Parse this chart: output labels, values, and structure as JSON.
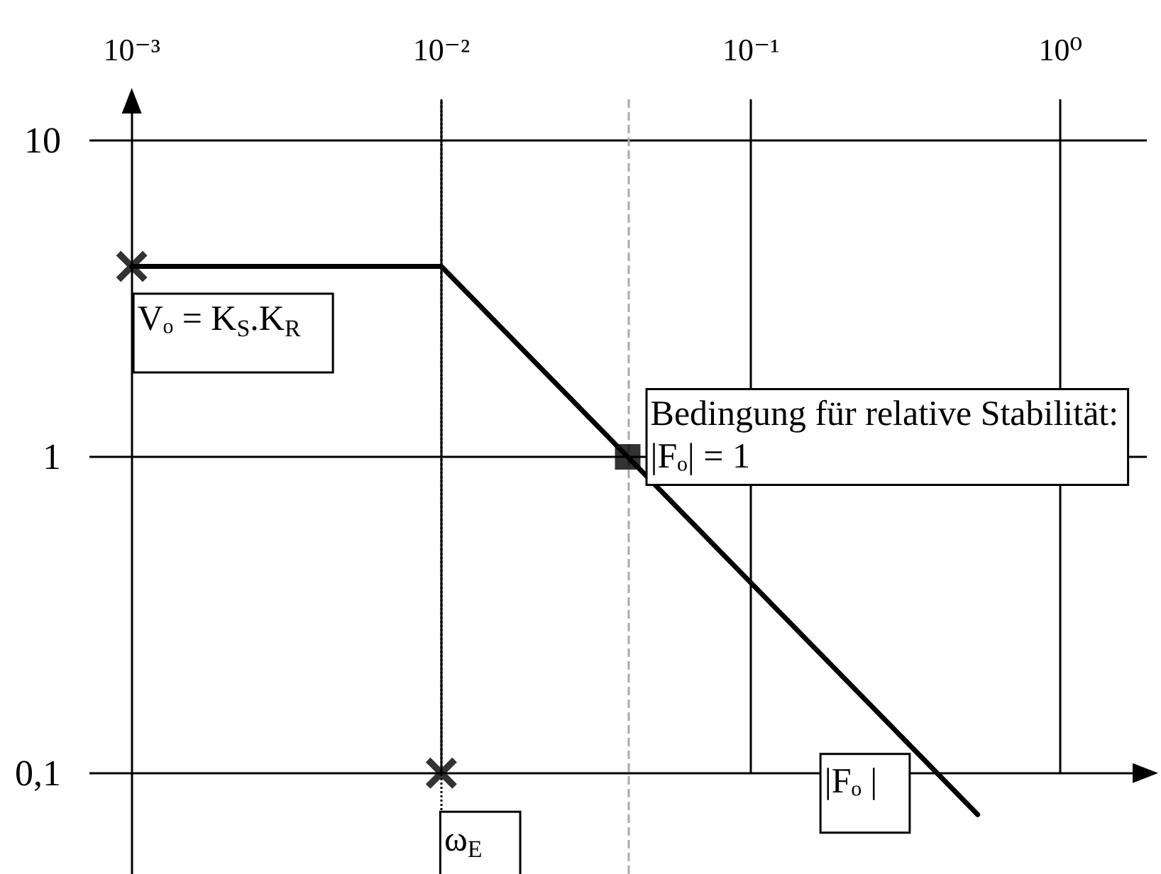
{
  "chart_data": {
    "type": "line",
    "xlim": [
      0.00073,
      1.9
    ],
    "ylim": [
      0.048,
      13.5
    ],
    "log": "xy",
    "xticks": [
      {
        "value": 0.001,
        "label": "10⁻³"
      },
      {
        "value": 0.01,
        "label": "10⁻²"
      },
      {
        "value": 0.1,
        "label": "10⁻¹"
      },
      {
        "value": 1,
        "label": "10⁰"
      }
    ],
    "yticks": [
      {
        "value": 0.1,
        "label": "0,1"
      },
      1,
      10
    ],
    "grid": true,
    "series": [
      {
        "name": "|Fₒ |",
        "x": [
          0.001,
          0.01,
          0.54
        ],
        "values": [
          4,
          4,
          0.074
        ],
        "color": "#000000",
        "marker": "none"
      },
      {
        "type": "scatter",
        "x": [
          0.001,
          0.01
        ],
        "values": [
          4,
          0.1
        ],
        "color": "#000000",
        "marker": "cross"
      },
      {
        "type": "scatter",
        "x": [
          0.04
        ],
        "values": [
          1
        ],
        "color": "#000000",
        "marker": "square"
      }
    ],
    "ref_lines": [
      {
        "axis": "x",
        "value": 0.01,
        "line_style": "dotted",
        "color": "#000000"
      },
      {
        "axis": "x",
        "value": 0.04,
        "line_style": "dashed",
        "color": "#aaaaaa"
      }
    ],
    "annotations": [
      {
        "text": "Vₒ = K$_{S}$.K$_{R}$",
        "x": 0.001,
        "y": 4
      },
      {
        "text": "Bedingung für relative Stabilität:\n|Fₒ| = 1",
        "x": 0.04,
        "y": 1
      },
      {
        "text": "ω$_{E}$",
        "x": 0.01,
        "y": 0.1
      }
    ]
  }
}
